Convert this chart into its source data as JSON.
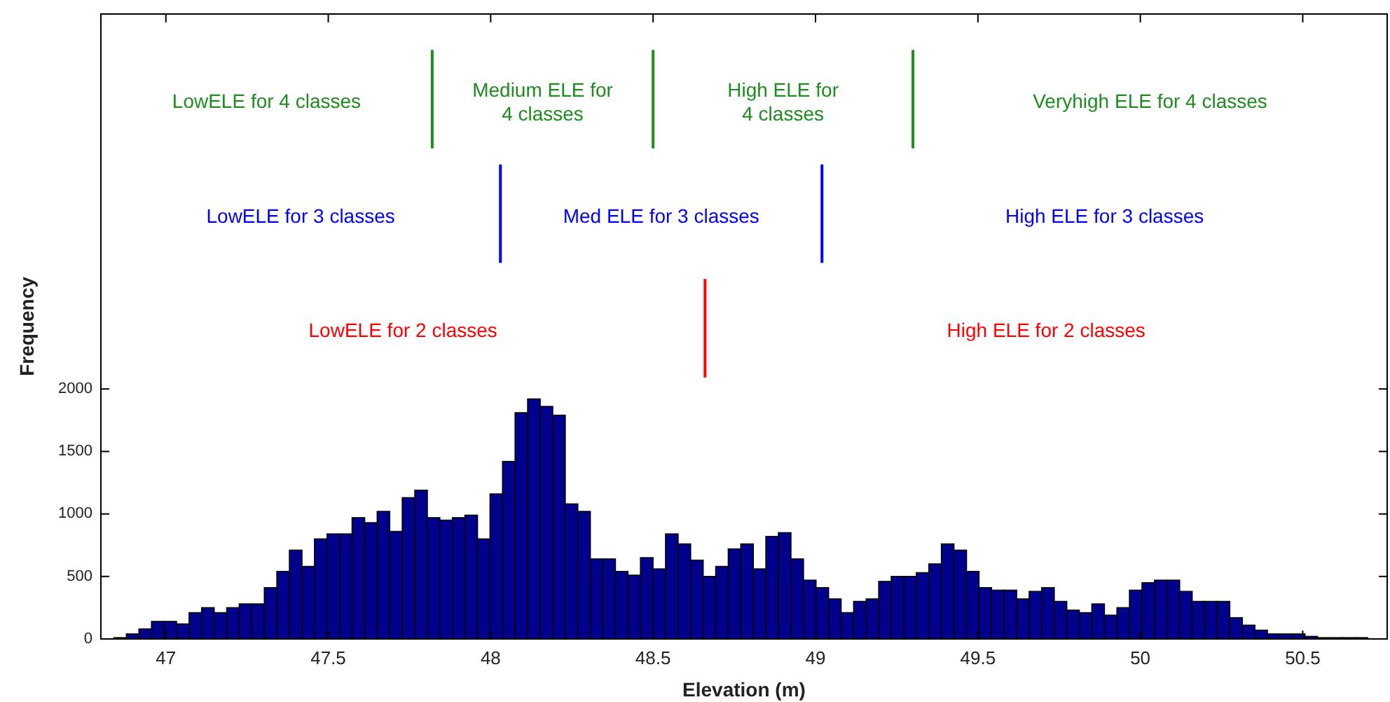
{
  "chart_data": {
    "type": "histogram",
    "xlabel": "Elevation (m)",
    "ylabel": "Frequency",
    "color": "#00008c",
    "bins": [
      46.84,
      46.8786,
      46.9172,
      46.9558,
      46.9944,
      47.033,
      47.0716,
      47.1102,
      47.1488,
      47.1874,
      47.226,
      47.2646,
      47.3032,
      47.3418,
      47.3804,
      47.419,
      47.4576,
      47.4962,
      47.5348,
      47.5734,
      47.612,
      47.6506,
      47.6892,
      47.7278,
      47.7664,
      47.805,
      47.8436,
      47.8822,
      47.9208,
      47.9594,
      47.998,
      48.0366,
      48.0752,
      48.1138,
      48.1524,
      48.191,
      48.2296,
      48.2682,
      48.3068,
      48.3454,
      48.384,
      48.4226,
      48.4612,
      48.4998,
      48.5384,
      48.577,
      48.6156,
      48.6542,
      48.6928,
      48.7314,
      48.77,
      48.8086,
      48.8472,
      48.8858,
      48.9244,
      48.963,
      49.0016,
      49.0402,
      49.0788,
      49.1174,
      49.156,
      49.1946,
      49.2332,
      49.2718,
      49.3104,
      49.349,
      49.3876,
      49.4262,
      49.4648,
      49.5034,
      49.542,
      49.5806,
      49.6192,
      49.6578,
      49.6964,
      49.735,
      49.7736,
      49.8122,
      49.8508,
      49.8894,
      49.928,
      49.9666,
      50.0052,
      50.0438,
      50.0824,
      50.121,
      50.1596,
      50.1982,
      50.2368,
      50.2754,
      50.314,
      50.3526,
      50.3912,
      50.4298,
      50.4684,
      50.507,
      50.5456,
      50.5842,
      50.6228,
      50.6614,
      50.7
    ],
    "values": [
      10,
      40,
      80,
      140,
      140,
      120,
      210,
      250,
      210,
      250,
      280,
      280,
      410,
      540,
      710,
      580,
      800,
      840,
      840,
      970,
      930,
      1020,
      860,
      1130,
      1190,
      970,
      950,
      970,
      990,
      800,
      1160,
      1420,
      1810,
      1920,
      1860,
      1790,
      1080,
      1020,
      640,
      640,
      540,
      510,
      650,
      560,
      840,
      760,
      630,
      500,
      580,
      720,
      760,
      560,
      820,
      850,
      640,
      470,
      410,
      320,
      210,
      300,
      320,
      460,
      500,
      500,
      530,
      600,
      760,
      710,
      540,
      410,
      390,
      390,
      320,
      380,
      410,
      300,
      230,
      210,
      280,
      190,
      250,
      390,
      450,
      470,
      470,
      380,
      300,
      300,
      300,
      170,
      110,
      70,
      40,
      40,
      40,
      20,
      10,
      10,
      10,
      10
    ],
    "xlim": [
      46.8,
      50.76
    ],
    "ylim": [
      0,
      5000
    ],
    "xticks": [
      47,
      47.5,
      48,
      48.5,
      49,
      49.5,
      50,
      50.5
    ],
    "yticks": [
      0,
      500,
      1000,
      1500,
      2000
    ],
    "grid": false,
    "ref_lines": [
      {
        "axis": "x",
        "value": 47.82,
        "color": "#1e8c1e"
      },
      {
        "axis": "x",
        "value": 48.5,
        "color": "#1e8c1e"
      },
      {
        "axis": "x",
        "value": 49.3,
        "color": "#1e8c1e"
      },
      {
        "axis": "x",
        "value": 48.03,
        "color": "#0000ff"
      },
      {
        "axis": "x",
        "value": 49.02,
        "color": "#0000ff"
      },
      {
        "axis": "x",
        "value": 48.66,
        "color": "#ff0000"
      }
    ],
    "annotations": [
      "LowELE for 4 classes",
      "Medium ELE for\n4 classes",
      "High ELE for\n4 classes",
      "Veryhigh ELE for 4 classes",
      "LowELE for 3 classes",
      "Med ELE for 3 classes",
      "High ELE for 3 classes",
      "LowELE for 2 classes",
      "High ELE for 2 classes"
    ]
  }
}
